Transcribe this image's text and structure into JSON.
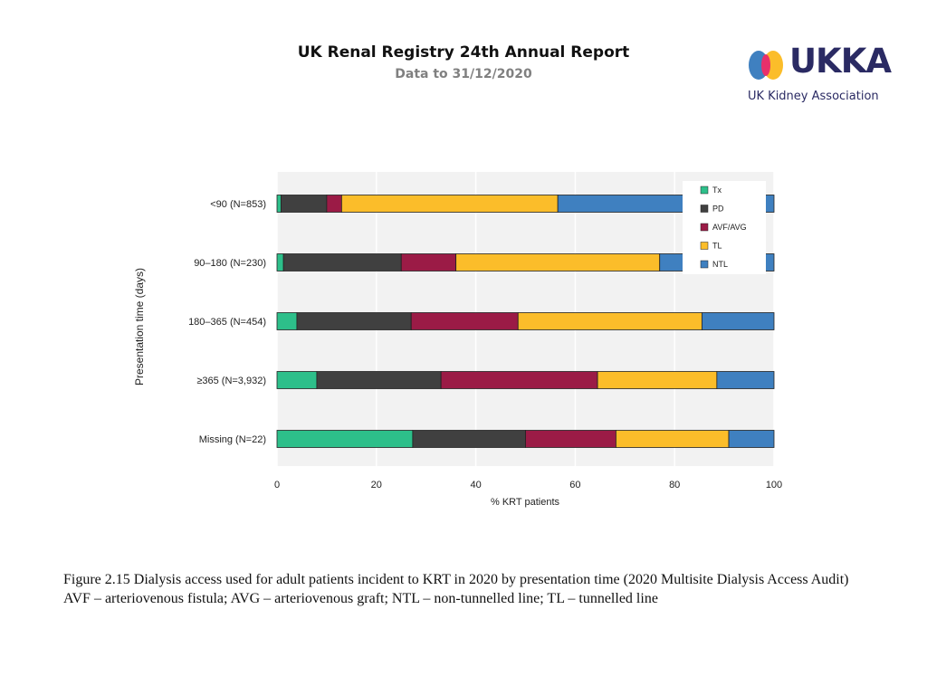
{
  "header": {
    "title": "UK Renal Registry 24th Annual Report",
    "subtitle": "Data to 31/12/2020"
  },
  "logo": {
    "wordmark": "UKKA",
    "org_name": "UK Kidney Association"
  },
  "chart_data": {
    "type": "bar",
    "orientation": "horizontal",
    "stacked": true,
    "xlabel": "% KRT patients",
    "ylabel": "Presentation time (days)",
    "xlim": [
      0,
      100
    ],
    "xticks": [
      0,
      20,
      40,
      60,
      80,
      100
    ],
    "grid": true,
    "legend_position": "top-right",
    "categories": [
      "<90 (N=853)",
      "90–180 (N=230)",
      "180–365 (N=454)",
      "≥365 (N=3,932)",
      "Missing (N=22)"
    ],
    "series": [
      {
        "name": "Tx",
        "color": "#2dbf8a",
        "values": [
          0.8,
          1.3,
          4.0,
          8.0,
          27.3
        ]
      },
      {
        "name": "PD",
        "color": "#404040",
        "values": [
          9.2,
          23.7,
          23.0,
          25.0,
          22.7
        ]
      },
      {
        "name": "AVF/AVG",
        "color": "#9b1b46",
        "values": [
          3.0,
          11.0,
          21.5,
          31.5,
          18.2
        ]
      },
      {
        "name": "TL",
        "color": "#fbbd2a",
        "values": [
          43.5,
          41.0,
          37.0,
          24.0,
          22.7
        ]
      },
      {
        "name": "NTL",
        "color": "#3f80c0",
        "values": [
          43.5,
          23.0,
          14.5,
          11.5,
          9.1
        ]
      }
    ]
  },
  "caption": {
    "line1": "Figure 2.15 Dialysis access used for adult patients incident to KRT in 2020 by presentation time (2020 Multisite Dialysis Access Audit)",
    "line2": "AVF – arteriovenous fistula; AVG – arteriovenous graft; NTL – non-tunnelled line; TL – tunnelled line"
  }
}
